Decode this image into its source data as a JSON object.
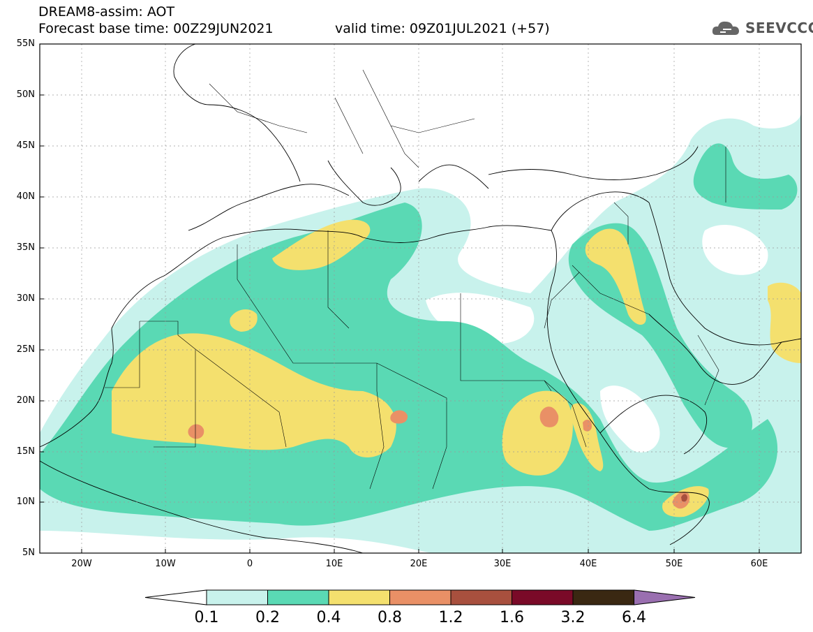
{
  "header": {
    "model_title": "DREAM8-assim: AOT",
    "base_time": "Forecast base time: 00Z29JUN2021",
    "valid_time": "valid time: 09Z01JUL2021 (+57)"
  },
  "logo": {
    "text": "SEEVCCC",
    "icon": "cloud-icon"
  },
  "map": {
    "lat_labels": [
      "55N",
      "50N",
      "45N",
      "40N",
      "35N",
      "30N",
      "25N",
      "20N",
      "15N",
      "10N",
      "5N"
    ],
    "lon_labels": [
      "20W",
      "10W",
      "0",
      "10E",
      "20E",
      "30E",
      "40E",
      "50E",
      "60E"
    ],
    "lat_range": [
      5,
      55
    ],
    "lon_range": [
      -25,
      65
    ]
  },
  "colorbar": {
    "labels": [
      "0.1",
      "0.2",
      "0.4",
      "0.8",
      "1.2",
      "1.6",
      "3.2",
      "6.4"
    ],
    "colors": [
      "#c8f2ec",
      "#5ad9b4",
      "#f4e06e",
      "#e99066",
      "#a8503e",
      "#7a0a28",
      "#3a2812",
      "#9a6fb0"
    ]
  }
}
